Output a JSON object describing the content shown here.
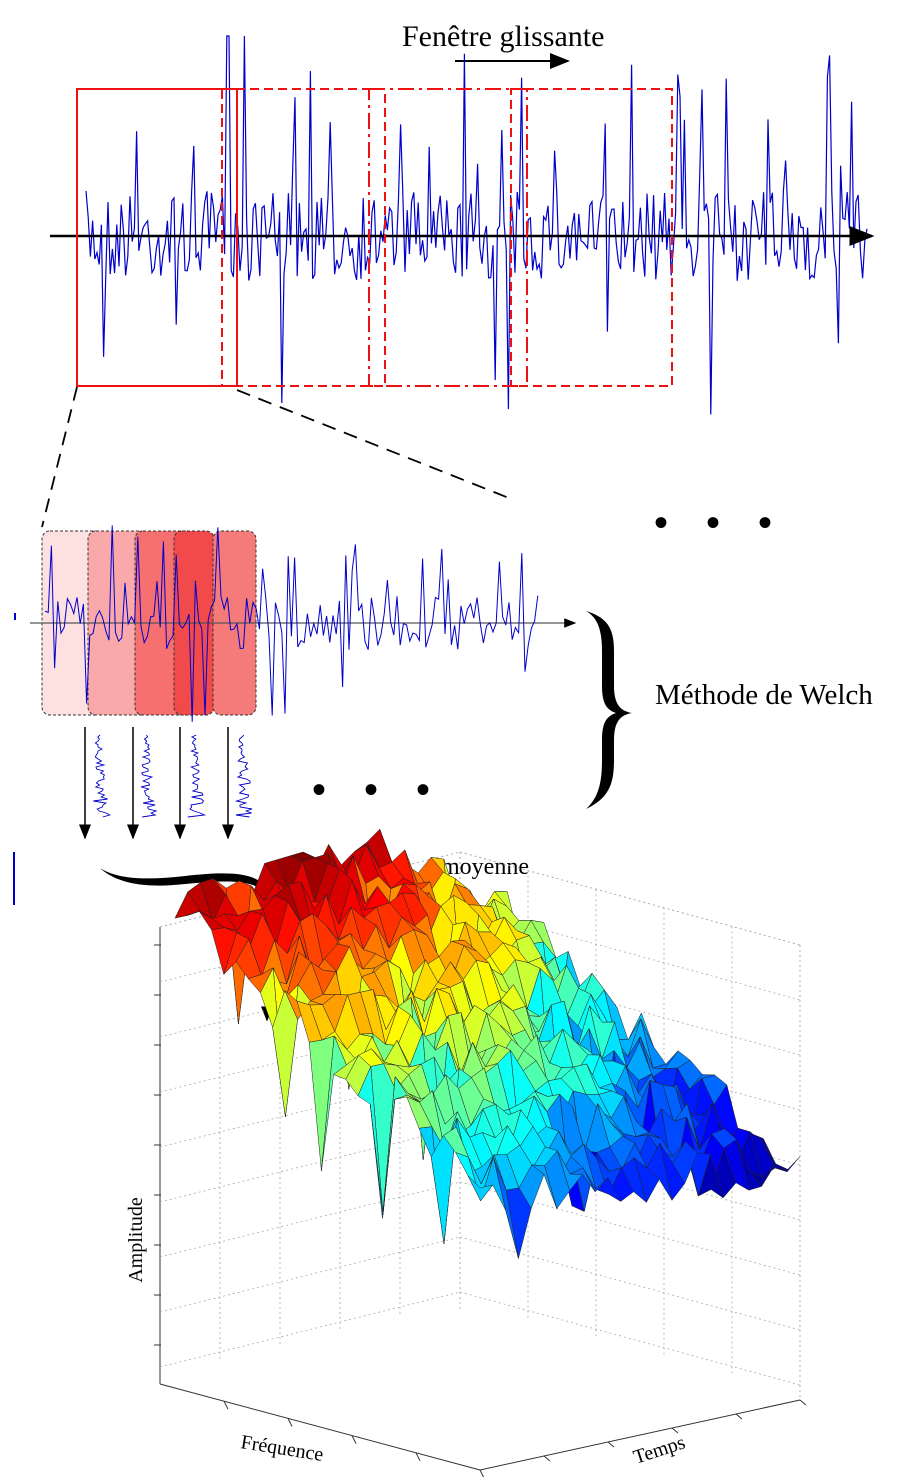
{
  "labels": {
    "sliding_window": "Fenêtre glissante",
    "welch_method": "Méthode de Welch",
    "average": "moyenne",
    "amplitude_axis": "Amplitude",
    "frequency_axis": "Fréquence",
    "time_axis": "Temps",
    "ellipsis": "• • •"
  },
  "colors": {
    "signal": "#0000cc",
    "window": "#ee1111",
    "segments": [
      "#fde0e0",
      "#f9a9a9",
      "#f67070",
      "#f24a4a",
      "#f57a7a"
    ]
  }
}
